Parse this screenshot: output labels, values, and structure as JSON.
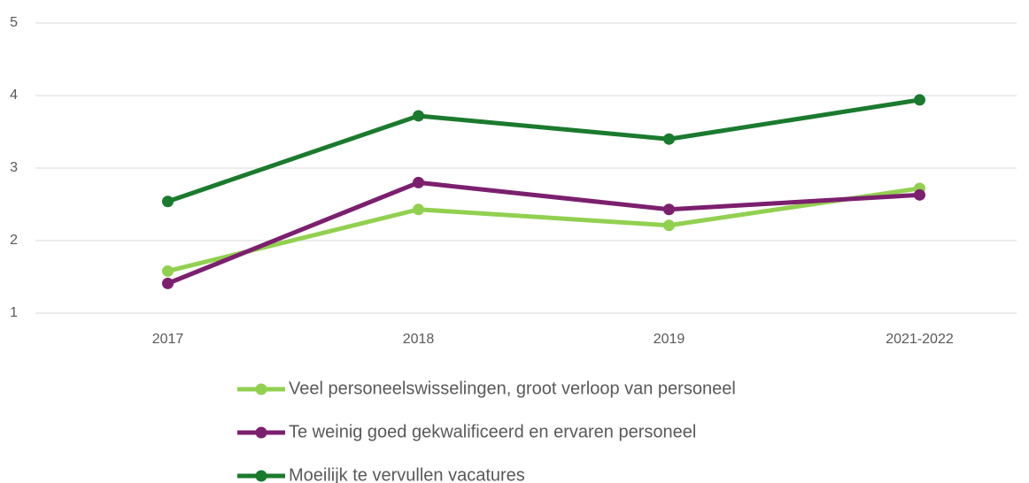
{
  "chart_data": {
    "type": "line",
    "categories": [
      "2017",
      "2018",
      "2019",
      "2021-2022"
    ],
    "series": [
      {
        "name": "Veel personeelswisselingen, groot verloop van personeel",
        "color": "#92d050",
        "values": [
          1.58,
          2.43,
          2.21,
          2.72
        ]
      },
      {
        "name": "Te weinig goed gekwalificeerd en ervaren personeel",
        "color": "#7b1f6e",
        "values": [
          1.41,
          2.8,
          2.43,
          2.63
        ]
      },
      {
        "name": "Moeilijk te vervullen vacatures",
        "color": "#1a7a2e",
        "values": [
          2.54,
          3.72,
          3.4,
          3.94
        ]
      }
    ],
    "ylim": [
      1,
      5
    ],
    "yticks": [
      1,
      2,
      3,
      4,
      5
    ],
    "grid": true,
    "legend": "bottom"
  }
}
